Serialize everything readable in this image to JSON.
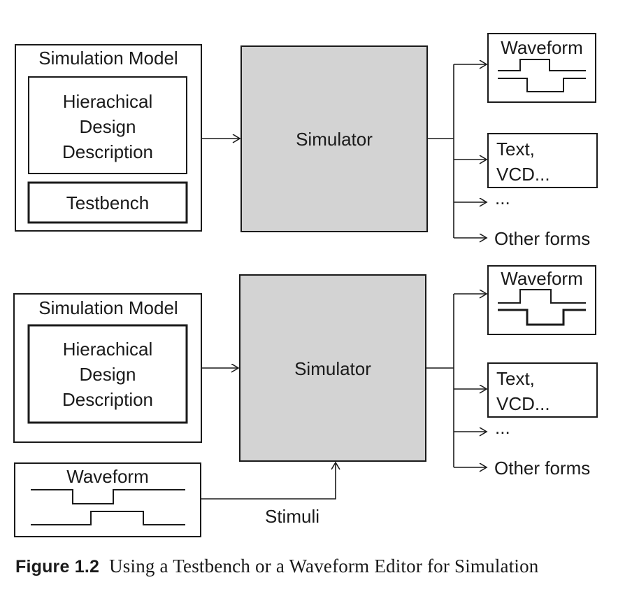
{
  "top": {
    "model_title": "Simulation Model",
    "design_lines": [
      "Hierachical",
      "Design",
      "Description"
    ],
    "testbench": "Testbench",
    "simulator": "Simulator",
    "outputs": {
      "waveform": "Waveform",
      "text_lines": [
        "Text,",
        "VCD..."
      ],
      "ellipsis": "...",
      "other": "Other forms"
    }
  },
  "bottom": {
    "model_title": "Simulation Model",
    "design_lines": [
      "Hierachical",
      "Design",
      "Description"
    ],
    "simulator": "Simulator",
    "input_waveform": "Waveform",
    "stimuli": "Stimuli",
    "outputs": {
      "waveform": "Waveform",
      "text_lines": [
        "Text,",
        "VCD..."
      ],
      "ellipsis": "...",
      "other": "Other forms"
    }
  },
  "caption": {
    "figure_label": "Figure 1.2",
    "text": "Using a Testbench or a Waveform Editor for Simulation"
  },
  "colors": {
    "simulator_fill": "#d3d3d3",
    "stroke": "#1a1a1a"
  }
}
